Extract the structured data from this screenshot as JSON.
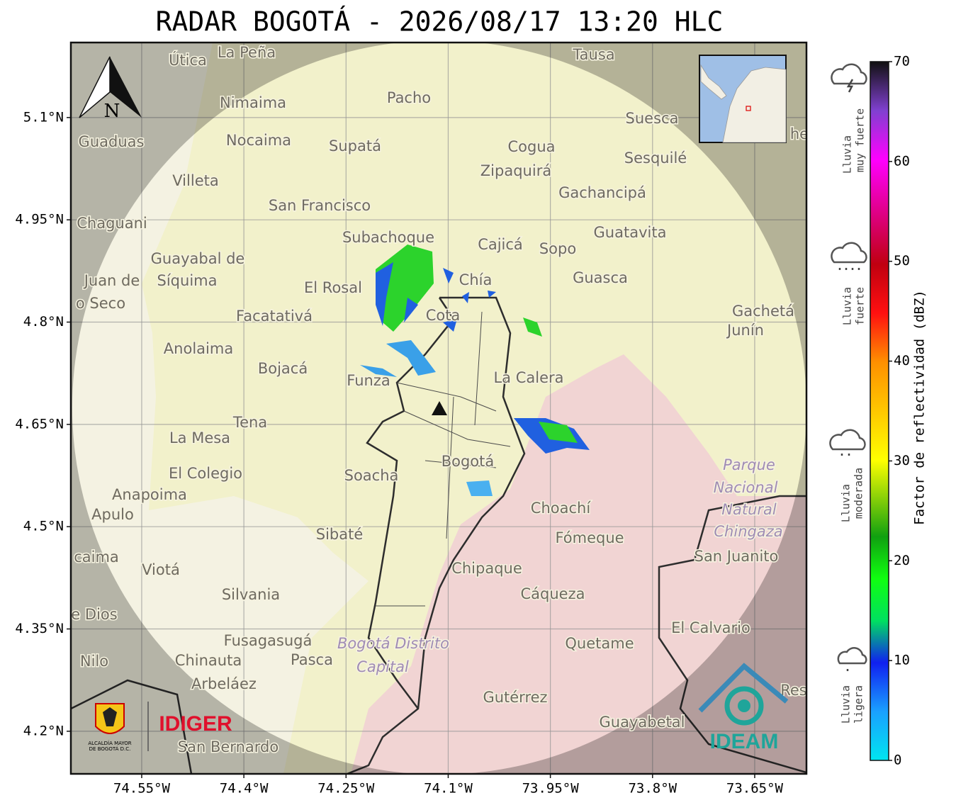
{
  "title": "RADAR BOGOTÁ - 2026/08/17 13:20 HLC",
  "map": {
    "lon_lim": [
      -74.654,
      -73.574
    ],
    "lat_lim": [
      4.1375,
      5.21
    ],
    "lon_ticks": [
      {
        "value": -74.55,
        "label": "74.55°W"
      },
      {
        "value": -74.4,
        "label": "74.4°W"
      },
      {
        "value": -74.25,
        "label": "74.25°W"
      },
      {
        "value": -74.1,
        "label": "74.1°W"
      },
      {
        "value": -73.95,
        "label": "73.95°W"
      },
      {
        "value": -73.8,
        "label": "73.8°W"
      },
      {
        "value": -73.65,
        "label": "73.65°W"
      }
    ],
    "lat_ticks": [
      {
        "value": 5.1,
        "label": "5.1°N"
      },
      {
        "value": 4.95,
        "label": "4.95°N"
      },
      {
        "value": 4.8,
        "label": "4.8°N"
      },
      {
        "value": 4.65,
        "label": "4.65°N"
      },
      {
        "value": 4.5,
        "label": "4.5°N"
      },
      {
        "value": 4.35,
        "label": "4.35°N"
      },
      {
        "value": 4.2,
        "label": "4.2°N"
      }
    ],
    "north": "N",
    "places": [
      "La Peña",
      "Útica",
      "Tausa",
      "Pacho",
      "Nimaima",
      "Guaduas",
      "Nocaima",
      "Supatá",
      "Cogua",
      "Suesca",
      "Sesquilé",
      "Zipaquirá",
      "Villeta",
      "Gachancipá",
      "San Francisco",
      "Chaguani",
      "Guatavita",
      "Subachoque",
      "Cajicá",
      "Sopo",
      "Guayabal de",
      "Síquima",
      "Juan de",
      "El Rosal",
      "Chía",
      "Guasca",
      "o Seco",
      "Facatativá",
      "Cota",
      "Gachetá",
      "Junín",
      "Anolaima",
      "Bojacá",
      "Funza",
      "La Calera",
      "Tena",
      "La Mesa",
      "Bogotá",
      "Parque",
      "El Colegio",
      "Soacha",
      "Nacional",
      "Anapoima",
      "Natural",
      "Apulo",
      "Choachí",
      "Chingaza",
      "Sibaté",
      "Fómeque",
      "San Juanito",
      "caima",
      "Chipaque",
      "Viotá",
      "Silvania",
      "Cáqueza",
      "e Dios",
      "El Calvario",
      "Fusagasugá",
      "Bogotá Distrito",
      "Quetame",
      "Nilo",
      "Chinauta",
      "Pasca",
      "Capital",
      "Arbeláez",
      "Gutérrez",
      "Res",
      "Guayabetal",
      "San Bernardo",
      "he"
    ]
  },
  "colorbar": {
    "label": "Factor de reflectividad (dBZ)",
    "lim": [
      0,
      70
    ],
    "ticks": [
      0,
      10,
      20,
      30,
      40,
      50,
      60,
      70
    ]
  },
  "legend": [
    [
      "Lluvia",
      "muy fuerte"
    ],
    [
      "Lluvia",
      "fuerte"
    ],
    [
      "Lluvia",
      "moderada"
    ],
    [
      "Lluvia",
      "ligera"
    ]
  ],
  "logos": {
    "alcaldia": [
      "ALCALDÍA MAYOR",
      "DE BOGOTÁ D.C."
    ],
    "idiger": "IDIGER",
    "ideam": "IDEAM"
  }
}
